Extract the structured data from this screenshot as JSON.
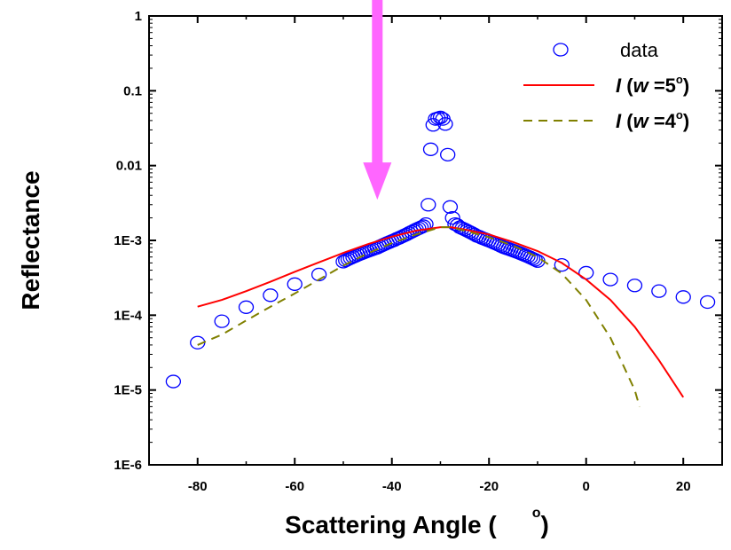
{
  "chart_data": {
    "type": "scatter",
    "title": "",
    "xlabel": "Scattering Angle (",
    "xlabel_unit_superscript": "o",
    "xlabel_close": ")",
    "ylabel": "Reflectance",
    "xlim": [
      -90,
      28
    ],
    "ylim": [
      1e-06,
      1
    ],
    "yscale": "log",
    "grid": false,
    "legend_position": "top-right",
    "x_ticks": [
      -80,
      -60,
      -40,
      -20,
      0,
      20
    ],
    "x_tick_labels": [
      "-80",
      "-60",
      "-40",
      "-20",
      "0",
      "20"
    ],
    "y_ticks": [
      1e-06,
      1e-05,
      0.0001,
      0.001,
      0.01,
      0.1,
      1
    ],
    "y_tick_labels": [
      "1E-6",
      "1E-5",
      "1E-4",
      "1E-3",
      "0.01",
      "0.1",
      "1"
    ],
    "annotation": {
      "type": "arrow",
      "color": "#ff66ff",
      "x": -43,
      "y_from": 1.5,
      "y_to": 0.0035
    },
    "series": [
      {
        "name": "data",
        "kind": "markers",
        "marker": "open-circle",
        "color": "#0000ff",
        "x": [
          -85,
          -80,
          -75,
          -70,
          -65,
          -60,
          -55,
          -50,
          -49.5,
          -49,
          -48.5,
          -48,
          -47.5,
          -47,
          -46.5,
          -46,
          -45.5,
          -45,
          -44.5,
          -44,
          -43.5,
          -43,
          -42.5,
          -42,
          -41.5,
          -41,
          -40.5,
          -40,
          -39.5,
          -39,
          -38.5,
          -38,
          -37.5,
          -37,
          -36.5,
          -36,
          -35.5,
          -35,
          -34.5,
          -34,
          -33.5,
          -33,
          -32.5,
          -32,
          -31.5,
          -31,
          -30.5,
          -30,
          -29.5,
          -29,
          -28.5,
          -28,
          -27.5,
          -27,
          -26.5,
          -26,
          -25.5,
          -25,
          -24.5,
          -24,
          -23.5,
          -23,
          -22.5,
          -22,
          -21.5,
          -21,
          -20.5,
          -20,
          -19.5,
          -19,
          -18.5,
          -18,
          -17.5,
          -17,
          -16.5,
          -16,
          -15.5,
          -15,
          -14.5,
          -14,
          -13.5,
          -13,
          -12.5,
          -12,
          -11.5,
          -11,
          -10.5,
          -10,
          -5,
          0,
          5,
          10,
          15,
          20,
          25
        ],
        "y": [
          1.3e-05,
          4.3e-05,
          8.3e-05,
          0.000128,
          0.000185,
          0.00026,
          0.00035,
          0.00052,
          0.00054,
          0.00056,
          0.00058,
          0.0006,
          0.00062,
          0.00064,
          0.00066,
          0.00068,
          0.0007,
          0.00072,
          0.00074,
          0.00076,
          0.00078,
          0.0008,
          0.00083,
          0.00086,
          0.00089,
          0.00092,
          0.00095,
          0.00098,
          0.00101,
          0.00105,
          0.00108,
          0.00112,
          0.00116,
          0.0012,
          0.00125,
          0.0013,
          0.00135,
          0.0014,
          0.00145,
          0.0015,
          0.00155,
          0.00165,
          0.003,
          0.0165,
          0.035,
          0.042,
          0.043,
          0.044,
          0.042,
          0.036,
          0.014,
          0.0028,
          0.002,
          0.00165,
          0.0016,
          0.0015,
          0.00145,
          0.0014,
          0.00135,
          0.0013,
          0.00125,
          0.0012,
          0.00115,
          0.00112,
          0.00108,
          0.00105,
          0.00102,
          0.00099,
          0.00096,
          0.00093,
          0.0009,
          0.00087,
          0.00084,
          0.00081,
          0.00079,
          0.00077,
          0.00075,
          0.00073,
          0.00071,
          0.00069,
          0.00067,
          0.00065,
          0.00063,
          0.00061,
          0.00059,
          0.00057,
          0.00055,
          0.00053,
          0.00047,
          0.00037,
          0.0003,
          0.00025,
          0.00021,
          0.000175,
          0.00015
        ]
      },
      {
        "name": "I (w =5°)",
        "legend_italic": "I",
        "legend_mid": "(",
        "legend_italic2": "w",
        "legend_rest": " =5",
        "legend_sup": "o",
        "legend_close": ")",
        "kind": "line",
        "style": "solid",
        "color": "#ff0000",
        "x": [
          -80,
          -75,
          -70,
          -65,
          -60,
          -55,
          -50,
          -45,
          -40,
          -35,
          -30,
          -28,
          -25,
          -20,
          -15,
          -10,
          -5,
          0,
          5,
          10,
          15,
          20
        ],
        "y": [
          0.00013,
          0.00016,
          0.00021,
          0.00028,
          0.00038,
          0.00051,
          0.00068,
          0.00089,
          0.00112,
          0.00135,
          0.0015,
          0.0015,
          0.0014,
          0.0012,
          0.00095,
          0.00072,
          0.0005,
          0.0003,
          0.00016,
          7e-05,
          2.5e-05,
          8e-06
        ]
      },
      {
        "name": "I (w =4°)",
        "legend_italic": "I",
        "legend_mid": "(",
        "legend_italic2": "w",
        "legend_rest": " =4",
        "legend_sup": "o",
        "legend_close": ")",
        "kind": "line",
        "style": "dashed",
        "color": "#808000",
        "x": [
          -80,
          -75,
          -70,
          -65,
          -60,
          -55,
          -50,
          -45,
          -40,
          -35,
          -30,
          -28,
          -25,
          -20,
          -15,
          -10,
          -5,
          0,
          5,
          10,
          11
        ],
        "y": [
          4e-05,
          5.5e-05,
          8.5e-05,
          0.00013,
          0.000195,
          0.0003,
          0.00046,
          0.00067,
          0.00092,
          0.0012,
          0.0015,
          0.0015,
          0.00135,
          0.0011,
          0.00085,
          0.0006,
          0.00036,
          0.00016,
          5e-05,
          1e-05,
          6e-06
        ]
      }
    ]
  }
}
